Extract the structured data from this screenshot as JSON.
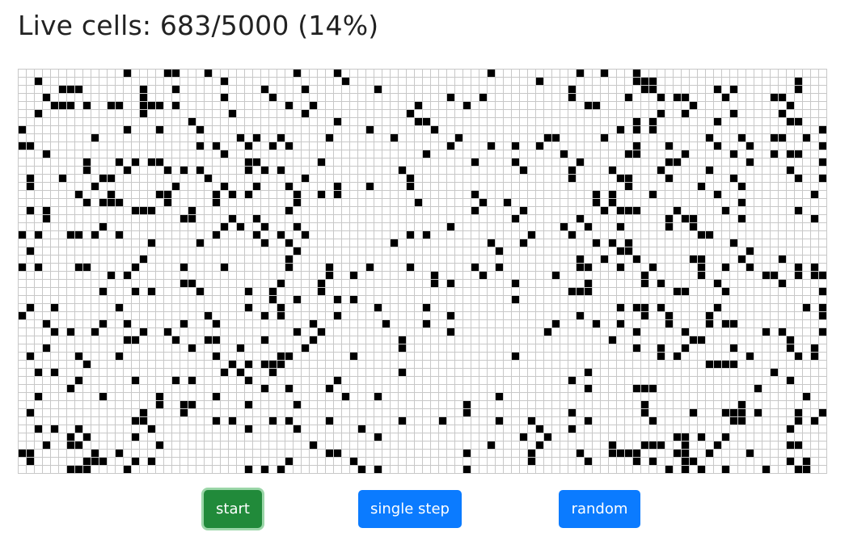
{
  "status": {
    "label": "Live cells:",
    "live": 683,
    "total": 5000,
    "percent": "14%",
    "text": "Live cells: 683/5000 (14%)"
  },
  "grid": {
    "cols": 100,
    "rows": 50
  },
  "buttons": {
    "start": "start",
    "step": "single step",
    "random": "random"
  },
  "colors": {
    "alive": "#000000",
    "dead": "#ffffff",
    "grid_line": "#c8c8c8",
    "start_button": "#218a3a",
    "primary_button": "#0b7bff"
  }
}
